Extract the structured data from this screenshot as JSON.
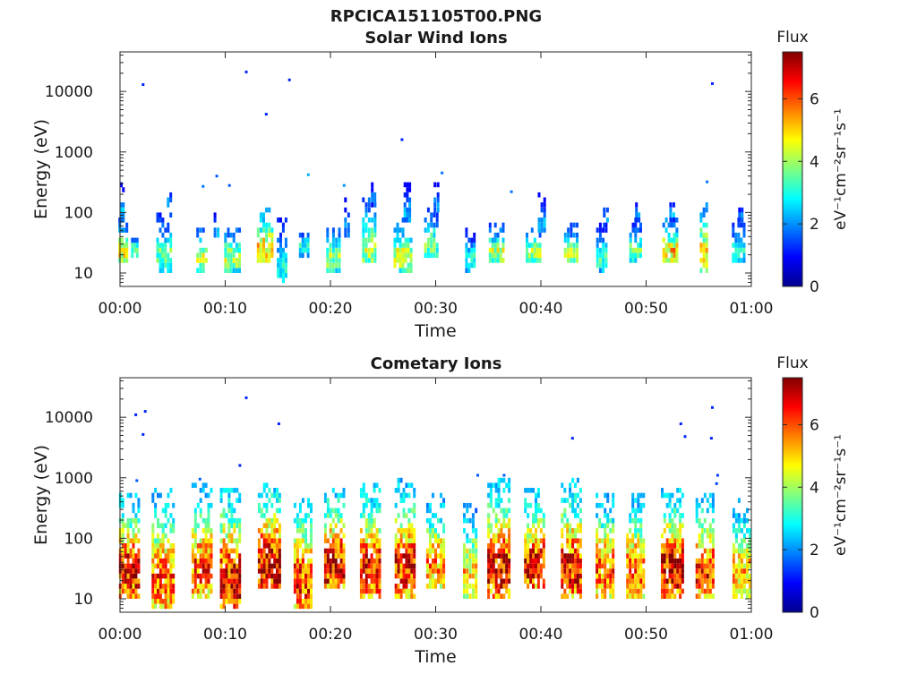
{
  "figure": {
    "title": "RPCICA151105T00.PNG"
  },
  "colormap": "jet",
  "chart_data": [
    {
      "type": "heatmap",
      "title": "Solar Wind Ions",
      "xlabel": "Time",
      "ylabel": "Energy (eV)",
      "x_unit": "minutes",
      "xlim": [
        0,
        60
      ],
      "ylim": [
        6,
        45000
      ],
      "yscale": "log",
      "grid": false,
      "xticks": [
        0,
        10,
        20,
        30,
        40,
        50,
        60
      ],
      "xtick_labels": [
        "00:00",
        "00:10",
        "00:20",
        "00:30",
        "00:40",
        "00:50",
        "01:00"
      ],
      "yticks": [
        10,
        100,
        1000,
        10000
      ],
      "ytick_labels": [
        "10",
        "100",
        "1000",
        "10000"
      ],
      "colorbar": {
        "title": "Flux",
        "label": "eV⁻¹cm⁻²sr⁻¹s⁻¹",
        "range": [
          0,
          7.5
        ],
        "ticks": [
          0,
          2,
          4,
          6
        ],
        "tick_labels": [
          "0",
          "2",
          "4",
          "6"
        ]
      },
      "bursts": [
        {
          "t": 0.3,
          "w": 0.9,
          "emin": 15,
          "emax": 60,
          "peak": 4.6
        },
        {
          "t": 0.2,
          "w": 0.4,
          "emin": 70,
          "emax": 220,
          "peak": 2.3
        },
        {
          "t": 1.4,
          "w": 0.7,
          "emin": 18,
          "emax": 40,
          "peak": 3.4
        },
        {
          "t": 4.2,
          "w": 1.5,
          "emin": 12,
          "emax": 70,
          "peak": 3.6
        },
        {
          "t": 4.7,
          "w": 0.5,
          "emin": 120,
          "emax": 190,
          "peak": 2.3
        },
        {
          "t": 7.8,
          "w": 1.1,
          "emin": 12,
          "emax": 45,
          "peak": 4.6
        },
        {
          "t": 9.2,
          "w": 0.6,
          "emin": 35,
          "emax": 100,
          "peak": 2.2
        },
        {
          "t": 10.7,
          "w": 1.6,
          "emin": 12,
          "emax": 45,
          "peak": 4.3
        },
        {
          "t": 13.8,
          "w": 1.6,
          "emin": 15,
          "emax": 90,
          "peak": 5.2
        },
        {
          "t": 15.4,
          "w": 1.0,
          "emin": 7,
          "emax": 60,
          "peak": 2.9
        },
        {
          "t": 17.5,
          "w": 1.0,
          "emin": 20,
          "emax": 45,
          "peak": 3.1
        },
        {
          "t": 20.3,
          "w": 1.4,
          "emin": 12,
          "emax": 45,
          "peak": 4.1
        },
        {
          "t": 21.6,
          "w": 0.6,
          "emin": 40,
          "emax": 130,
          "peak": 2.1
        },
        {
          "t": 23.7,
          "w": 1.4,
          "emin": 15,
          "emax": 130,
          "peak": 4.3
        },
        {
          "t": 24.1,
          "w": 0.5,
          "emin": 140,
          "emax": 220,
          "peak": 2.1
        },
        {
          "t": 26.9,
          "w": 1.8,
          "emin": 12,
          "emax": 60,
          "peak": 4.5
        },
        {
          "t": 27.3,
          "w": 0.7,
          "emin": 70,
          "emax": 240,
          "peak": 2.3
        },
        {
          "t": 29.6,
          "w": 1.4,
          "emin": 18,
          "emax": 100,
          "peak": 3.6
        },
        {
          "t": 30.1,
          "w": 0.6,
          "emin": 100,
          "emax": 230,
          "peak": 2.1
        },
        {
          "t": 33.3,
          "w": 1.0,
          "emin": 12,
          "emax": 40,
          "peak": 3.1
        },
        {
          "t": 35.8,
          "w": 1.5,
          "emin": 15,
          "emax": 50,
          "peak": 4.3
        },
        {
          "t": 39.3,
          "w": 1.5,
          "emin": 15,
          "emax": 45,
          "peak": 4.2
        },
        {
          "t": 40.1,
          "w": 0.8,
          "emin": 45,
          "emax": 150,
          "peak": 2.4
        },
        {
          "t": 42.9,
          "w": 1.4,
          "emin": 15,
          "emax": 50,
          "peak": 4.1
        },
        {
          "t": 45.8,
          "w": 1.1,
          "emin": 12,
          "emax": 50,
          "peak": 3.3
        },
        {
          "t": 46.2,
          "w": 0.6,
          "emin": 60,
          "emax": 140,
          "peak": 2.1
        },
        {
          "t": 49.0,
          "w": 1.2,
          "emin": 15,
          "emax": 60,
          "peak": 3.6
        },
        {
          "t": 49.2,
          "w": 0.5,
          "emin": 70,
          "emax": 130,
          "peak": 2.1
        },
        {
          "t": 52.3,
          "w": 1.5,
          "emin": 15,
          "emax": 60,
          "peak": 5.1
        },
        {
          "t": 52.5,
          "w": 0.6,
          "emin": 80,
          "emax": 140,
          "peak": 2.4
        },
        {
          "t": 55.5,
          "w": 0.8,
          "emin": 12,
          "emax": 120,
          "peak": 4.8
        },
        {
          "t": 58.8,
          "w": 1.3,
          "emin": 15,
          "emax": 60,
          "peak": 3.1
        },
        {
          "t": 59.0,
          "w": 0.5,
          "emin": 70,
          "emax": 120,
          "peak": 2.1
        }
      ],
      "points": [
        {
          "t": 2.2,
          "e": 13000,
          "v": 1.2
        },
        {
          "t": 12.0,
          "e": 21000,
          "v": 1.2
        },
        {
          "t": 13.9,
          "e": 4200,
          "v": 1.2
        },
        {
          "t": 16.1,
          "e": 15500,
          "v": 1.2
        },
        {
          "t": 26.8,
          "e": 1600,
          "v": 1.2
        },
        {
          "t": 56.3,
          "e": 13500,
          "v": 1.2
        },
        {
          "t": 9.2,
          "e": 400,
          "v": 1.6
        },
        {
          "t": 7.9,
          "e": 270,
          "v": 1.8
        },
        {
          "t": 10.4,
          "e": 280,
          "v": 1.6
        },
        {
          "t": 30.6,
          "e": 450,
          "v": 1.8
        },
        {
          "t": 17.9,
          "e": 420,
          "v": 2.2
        },
        {
          "t": 37.2,
          "e": 220,
          "v": 1.8
        },
        {
          "t": 55.8,
          "e": 320,
          "v": 1.8
        },
        {
          "t": 21.3,
          "e": 280,
          "v": 2.0
        }
      ]
    },
    {
      "type": "heatmap",
      "title": "Cometary Ions",
      "xlabel": "Time",
      "ylabel": "Energy (eV)",
      "x_unit": "minutes",
      "xlim": [
        0,
        60
      ],
      "ylim": [
        6,
        45000
      ],
      "yscale": "log",
      "grid": false,
      "xticks": [
        0,
        10,
        20,
        30,
        40,
        50,
        60
      ],
      "xtick_labels": [
        "00:00",
        "00:10",
        "00:20",
        "00:30",
        "00:40",
        "00:50",
        "01:00"
      ],
      "yticks": [
        10,
        100,
        1000,
        10000
      ],
      "ytick_labels": [
        "10",
        "100",
        "1000",
        "10000"
      ],
      "colorbar": {
        "title": "Flux",
        "label": "eV⁻¹cm⁻²sr⁻¹s⁻¹",
        "range": [
          0,
          7.5
        ],
        "ticks": [
          0,
          2,
          4,
          6
        ],
        "tick_labels": [
          "0",
          "2",
          "4",
          "6"
        ]
      },
      "bursts": [
        {
          "t": 0.9,
          "w": 2.0,
          "emin": 12,
          "emax": 450,
          "peak": 6.6
        },
        {
          "t": 4.1,
          "w": 2.2,
          "emin": 7,
          "emax": 500,
          "peak": 6.0
        },
        {
          "t": 7.8,
          "w": 2.0,
          "emin": 12,
          "emax": 600,
          "peak": 6.1
        },
        {
          "t": 10.5,
          "w": 2.0,
          "emin": 7,
          "emax": 550,
          "peak": 6.9
        },
        {
          "t": 14.2,
          "w": 2.2,
          "emin": 15,
          "emax": 650,
          "peak": 6.9
        },
        {
          "t": 17.4,
          "w": 1.8,
          "emin": 7,
          "emax": 450,
          "peak": 6.3
        },
        {
          "t": 20.4,
          "w": 2.0,
          "emin": 15,
          "emax": 550,
          "peak": 6.8
        },
        {
          "t": 23.8,
          "w": 2.0,
          "emin": 12,
          "emax": 600,
          "peak": 6.6
        },
        {
          "t": 27.1,
          "w": 2.0,
          "emin": 12,
          "emax": 700,
          "peak": 6.5
        },
        {
          "t": 30.0,
          "w": 1.8,
          "emin": 15,
          "emax": 450,
          "peak": 5.6
        },
        {
          "t": 33.3,
          "w": 1.4,
          "emin": 12,
          "emax": 300,
          "peak": 5.1
        },
        {
          "t": 36.0,
          "w": 2.2,
          "emin": 12,
          "emax": 700,
          "peak": 6.8
        },
        {
          "t": 39.4,
          "w": 2.0,
          "emin": 15,
          "emax": 500,
          "peak": 6.6
        },
        {
          "t": 42.9,
          "w": 2.0,
          "emin": 12,
          "emax": 700,
          "peak": 6.6
        },
        {
          "t": 46.1,
          "w": 1.8,
          "emin": 12,
          "emax": 450,
          "peak": 5.9
        },
        {
          "t": 49.0,
          "w": 1.8,
          "emin": 12,
          "emax": 450,
          "peak": 6.0
        },
        {
          "t": 52.5,
          "w": 2.2,
          "emin": 12,
          "emax": 550,
          "peak": 6.9
        },
        {
          "t": 55.6,
          "w": 1.8,
          "emin": 12,
          "emax": 420,
          "peak": 6.4
        },
        {
          "t": 59.1,
          "w": 1.8,
          "emin": 12,
          "emax": 350,
          "peak": 5.3
        }
      ],
      "points": [
        {
          "t": 1.5,
          "e": 11000,
          "v": 1.2
        },
        {
          "t": 2.4,
          "e": 12500,
          "v": 1.2
        },
        {
          "t": 2.2,
          "e": 5200,
          "v": 1.2
        },
        {
          "t": 12.0,
          "e": 21000,
          "v": 1.2
        },
        {
          "t": 15.1,
          "e": 7800,
          "v": 1.2
        },
        {
          "t": 11.4,
          "e": 1600,
          "v": 1.2
        },
        {
          "t": 43.0,
          "e": 4500,
          "v": 1.2
        },
        {
          "t": 53.3,
          "e": 7800,
          "v": 1.2
        },
        {
          "t": 53.7,
          "e": 4800,
          "v": 1.2
        },
        {
          "t": 56.3,
          "e": 14500,
          "v": 1.2
        },
        {
          "t": 56.2,
          "e": 4500,
          "v": 1.2
        },
        {
          "t": 56.8,
          "e": 1100,
          "v": 1.4
        },
        {
          "t": 56.7,
          "e": 800,
          "v": 1.4
        },
        {
          "t": 1.6,
          "e": 900,
          "v": 1.6
        },
        {
          "t": 34.0,
          "e": 1100,
          "v": 1.6
        },
        {
          "t": 36.5,
          "e": 1100,
          "v": 1.6
        },
        {
          "t": 7.6,
          "e": 950,
          "v": 1.6
        }
      ]
    }
  ]
}
